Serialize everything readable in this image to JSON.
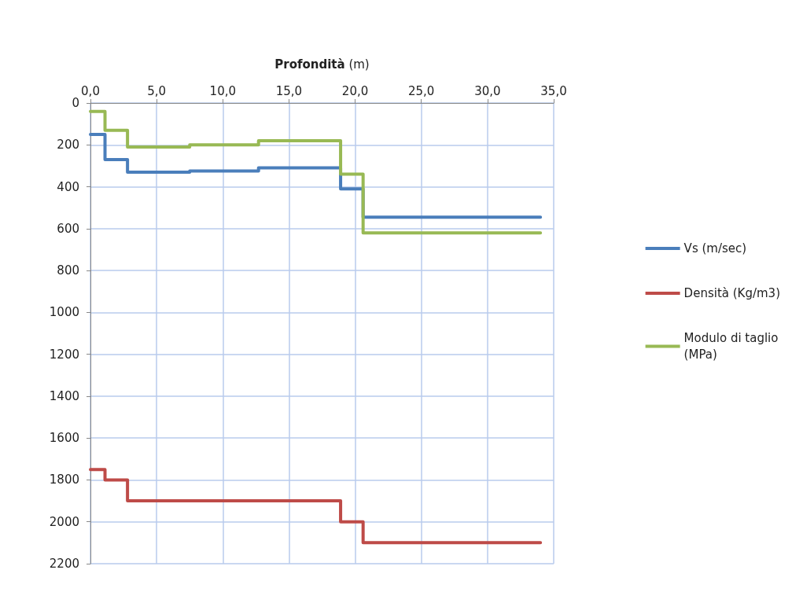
{
  "chart_data": {
    "type": "step",
    "xlabel": "Profondità (m)",
    "x": [
      0,
      1.1,
      2.8,
      7.5,
      12.7,
      18.9,
      20.6,
      34.0
    ],
    "series": [
      {
        "name": "Vs (m/sec)",
        "color": "#4a7ebb",
        "values": [
          150,
          270,
          330,
          325,
          310,
          410,
          545,
          545
        ]
      },
      {
        "name": "Densità (Kg/m3)",
        "color": "#be4b48",
        "values": [
          1750,
          1800,
          1900,
          1900,
          1900,
          2000,
          2100,
          2100
        ]
      },
      {
        "name": "Modulo di taglio (MPa)",
        "color": "#98b954",
        "values": [
          40,
          130,
          210,
          200,
          180,
          340,
          620,
          620
        ]
      }
    ],
    "xlim": [
      0,
      35
    ],
    "xticks": [
      {
        "value": 0,
        "label": "0,0"
      },
      {
        "value": 5,
        "label": "5,0"
      },
      {
        "value": 10,
        "label": "10,0"
      },
      {
        "value": 15,
        "label": "15,0"
      },
      {
        "value": 20,
        "label": "20,0"
      },
      {
        "value": 25,
        "label": "25,0"
      },
      {
        "value": 30,
        "label": "30,0"
      },
      {
        "value": 35,
        "label": "35,0"
      }
    ],
    "ylim": [
      2200,
      0
    ],
    "yticks": [
      0,
      200,
      400,
      600,
      800,
      1000,
      1200,
      1400,
      1600,
      1800,
      2000,
      2200
    ],
    "grid": true,
    "legend": "right",
    "marker": "none",
    "line_style": "solid"
  }
}
